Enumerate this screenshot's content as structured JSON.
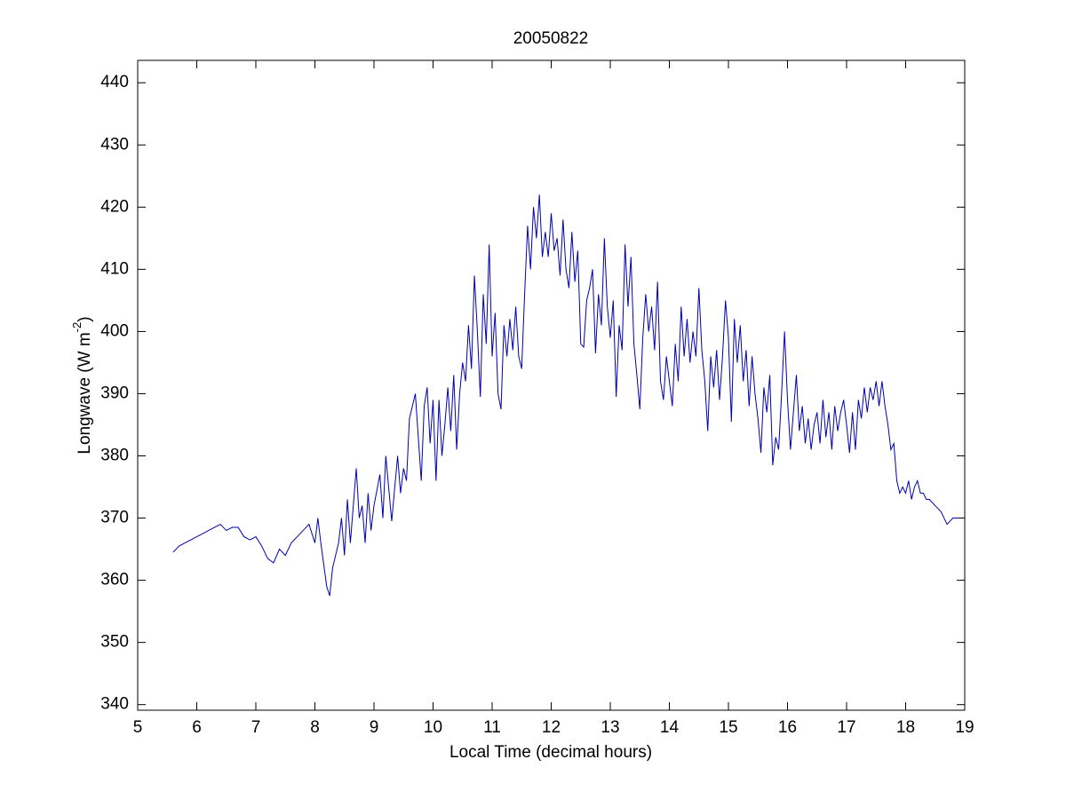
{
  "chart_data": {
    "type": "line",
    "title": "20050822",
    "xlabel": "Local Time (decimal hours)",
    "ylabel": {
      "text": "Longwave (W m",
      "superscript": "-2",
      "suffix": ")"
    },
    "xlim": [
      5,
      19
    ],
    "xticks": [
      5,
      6,
      7,
      8,
      9,
      10,
      11,
      12,
      13,
      14,
      15,
      16,
      17,
      18,
      19
    ],
    "ylim": [
      339.1,
      443.6
    ],
    "yticks": [
      340,
      350,
      360,
      370,
      380,
      390,
      400,
      410,
      420,
      430,
      440
    ],
    "grid": false,
    "series": [
      {
        "color": "#0000b0",
        "x": [
          5.6,
          5.7,
          5.8,
          5.9,
          6.0,
          6.1,
          6.2,
          6.3,
          6.4,
          6.5,
          6.6,
          6.7,
          6.8,
          6.9,
          7.0,
          7.1,
          7.2,
          7.3,
          7.4,
          7.5,
          7.6,
          7.7,
          7.8,
          7.9,
          8.0,
          8.05,
          8.1,
          8.2,
          8.25,
          8.3,
          8.4,
          8.45,
          8.5,
          8.55,
          8.6,
          8.7,
          8.75,
          8.8,
          8.85,
          8.9,
          8.95,
          9.0,
          9.1,
          9.15,
          9.2,
          9.3,
          9.4,
          9.45,
          9.5,
          9.55,
          9.6,
          9.7,
          9.75,
          9.8,
          9.85,
          9.9,
          9.95,
          10.0,
          10.05,
          10.1,
          10.15,
          10.2,
          10.25,
          10.3,
          10.35,
          10.4,
          10.45,
          10.5,
          10.55,
          10.6,
          10.65,
          10.7,
          10.75,
          10.8,
          10.85,
          10.9,
          10.95,
          11.0,
          11.05,
          11.1,
          11.15,
          11.2,
          11.25,
          11.3,
          11.35,
          11.4,
          11.45,
          11.5,
          11.55,
          11.6,
          11.65,
          11.7,
          11.75,
          11.8,
          11.85,
          11.9,
          11.95,
          12.0,
          12.05,
          12.1,
          12.15,
          12.2,
          12.25,
          12.3,
          12.35,
          12.4,
          12.45,
          12.5,
          12.55,
          12.6,
          12.65,
          12.7,
          12.75,
          12.8,
          12.85,
          12.9,
          12.95,
          13.0,
          13.05,
          13.1,
          13.15,
          13.2,
          13.25,
          13.3,
          13.35,
          13.4,
          13.45,
          13.5,
          13.55,
          13.6,
          13.65,
          13.7,
          13.75,
          13.8,
          13.85,
          13.9,
          13.95,
          14.0,
          14.05,
          14.1,
          14.15,
          14.2,
          14.25,
          14.3,
          14.35,
          14.4,
          14.45,
          14.5,
          14.55,
          14.6,
          14.65,
          14.7,
          14.75,
          14.8,
          14.85,
          14.9,
          14.95,
          15.0,
          15.05,
          15.1,
          15.15,
          15.2,
          15.25,
          15.3,
          15.35,
          15.4,
          15.45,
          15.5,
          15.55,
          15.6,
          15.65,
          15.7,
          15.75,
          15.8,
          15.85,
          15.9,
          15.95,
          16.0,
          16.05,
          16.1,
          16.15,
          16.2,
          16.25,
          16.3,
          16.35,
          16.4,
          16.45,
          16.5,
          16.55,
          16.6,
          16.65,
          16.7,
          16.75,
          16.8,
          16.85,
          16.9,
          16.95,
          17.0,
          17.05,
          17.1,
          17.15,
          17.2,
          17.25,
          17.3,
          17.35,
          17.4,
          17.45,
          17.5,
          17.55,
          17.6,
          17.65,
          17.7,
          17.75,
          17.8,
          17.85,
          17.9,
          17.95,
          18.0,
          18.05,
          18.1,
          18.15,
          18.2,
          18.25,
          18.3,
          18.35,
          18.4,
          18.5,
          18.6,
          18.7,
          18.75,
          18.8,
          18.9
        ],
        "values": [
          364.5,
          365.5,
          366,
          366.5,
          367,
          367.5,
          368,
          368.5,
          369,
          368,
          368.5,
          368.5,
          367,
          366.5,
          367,
          365.5,
          363.5,
          362.8,
          365,
          364,
          366,
          367,
          368,
          369,
          366,
          370,
          366,
          359,
          357.5,
          362,
          366,
          370,
          364,
          373,
          366,
          378,
          370,
          372,
          366,
          374,
          368,
          372,
          377,
          370,
          380,
          369.5,
          380,
          374,
          378,
          376,
          386,
          390,
          383,
          376,
          388,
          391,
          382,
          389,
          376,
          389,
          380,
          385,
          391,
          384,
          393,
          381,
          390,
          395,
          392,
          401,
          394,
          409,
          400,
          389.5,
          406,
          398,
          414,
          396,
          403,
          390,
          387.5,
          401,
          396,
          402,
          397,
          404,
          396,
          394,
          406,
          417,
          410,
          420,
          415,
          422,
          412,
          416,
          412,
          419,
          413,
          415,
          409,
          418,
          410,
          407,
          416,
          408,
          413,
          398,
          397.5,
          405,
          407,
          410,
          396.5,
          406,
          401,
          415,
          404,
          399,
          405,
          389.5,
          401,
          397,
          414,
          404,
          412,
          398,
          393,
          387.5,
          399,
          406,
          400,
          404,
          397,
          408,
          392,
          389,
          396,
          392,
          388,
          398,
          392,
          404,
          396,
          402,
          395,
          400,
          396,
          407,
          397,
          392,
          384,
          396,
          391,
          397,
          389,
          396,
          405,
          399,
          385.5,
          402,
          395,
          401,
          392,
          397,
          388,
          396,
          390,
          386,
          380.5,
          391,
          387,
          393,
          378.5,
          383,
          381,
          390,
          400,
          389,
          381,
          387,
          393,
          384,
          388,
          382,
          386,
          381,
          385,
          387,
          382,
          389,
          383,
          387,
          381,
          388,
          384,
          387,
          389,
          385,
          380.5,
          387,
          381,
          389,
          386,
          391,
          387,
          391,
          389,
          392,
          388,
          392,
          388,
          385,
          381,
          382,
          376,
          374,
          375,
          374,
          376,
          373,
          375,
          376,
          374,
          374,
          373,
          373,
          372,
          371,
          369,
          369.5,
          370,
          370
        ]
      }
    ]
  }
}
